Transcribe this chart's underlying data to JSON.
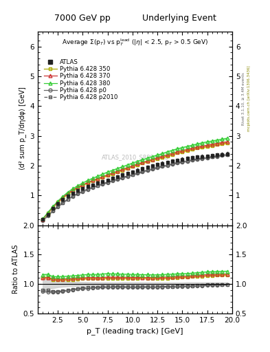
{
  "title_left": "7000 GeV pp",
  "title_right": "Underlying Event",
  "plot_title": "Average Σ(p_T) vs p_T^{lead} (|η| < 2.5, p_T > 0.5 GeV)",
  "xlabel": "p_T (leading track) [GeV]",
  "ylabel": "⟨d² sum p_T/dηdφ⟩ [GeV]",
  "ylabel_ratio": "Ratio to ATLAS",
  "watermark": "ATLAS_2010_S8894728",
  "right_label": "mcplots.cern.ch [arXiv:1306.3436]",
  "right_label2": "Rivet 3.1.10, ≥ 3.4M events",
  "xlim": [
    0.5,
    20
  ],
  "ylim_main": [
    0,
    6.5
  ],
  "ylim_ratio": [
    0.5,
    2.0
  ],
  "yticks_main": [
    1,
    2,
    3,
    4,
    5,
    6
  ],
  "yticks_ratio": [
    0.5,
    1.0,
    1.5,
    2.0
  ],
  "series": {
    "ATLAS": {
      "color": "#222222",
      "marker": "s",
      "filled": true,
      "linestyle": "none",
      "linewidth": 0.8,
      "markersize": 3.5,
      "zorder": 10,
      "label": "ATLAS",
      "x": [
        1.0,
        1.5,
        2.0,
        2.5,
        3.0,
        3.5,
        4.0,
        4.5,
        5.0,
        5.5,
        6.0,
        6.5,
        7.0,
        7.5,
        8.0,
        8.5,
        9.0,
        9.5,
        10.0,
        10.5,
        11.0,
        11.5,
        12.0,
        12.5,
        13.0,
        13.5,
        14.0,
        14.5,
        15.0,
        15.5,
        16.0,
        16.5,
        17.0,
        17.5,
        18.0,
        18.5,
        19.0,
        19.5
      ],
      "y": [
        0.19,
        0.37,
        0.56,
        0.72,
        0.86,
        0.98,
        1.08,
        1.16,
        1.23,
        1.3,
        1.36,
        1.42,
        1.47,
        1.52,
        1.58,
        1.63,
        1.69,
        1.74,
        1.8,
        1.85,
        1.9,
        1.95,
        2.0,
        2.04,
        2.08,
        2.12,
        2.16,
        2.19,
        2.22,
        2.25,
        2.27,
        2.29,
        2.31,
        2.32,
        2.34,
        2.36,
        2.38,
        2.4
      ],
      "yerr": [
        0.02,
        0.03,
        0.04,
        0.04,
        0.04,
        0.04,
        0.04,
        0.04,
        0.04,
        0.04,
        0.04,
        0.04,
        0.04,
        0.04,
        0.04,
        0.04,
        0.05,
        0.05,
        0.05,
        0.05,
        0.05,
        0.05,
        0.05,
        0.05,
        0.05,
        0.05,
        0.05,
        0.05,
        0.05,
        0.06,
        0.06,
        0.06,
        0.06,
        0.06,
        0.06,
        0.06,
        0.06,
        0.06
      ]
    },
    "P350": {
      "color": "#aaaa00",
      "marker": "s",
      "filled": false,
      "linestyle": "-",
      "linewidth": 0.8,
      "markersize": 3.0,
      "zorder": 6,
      "label": "Pythia 6.428 350",
      "x": [
        1.0,
        1.5,
        2.0,
        2.5,
        3.0,
        3.5,
        4.0,
        4.5,
        5.0,
        5.5,
        6.0,
        6.5,
        7.0,
        7.5,
        8.0,
        8.5,
        9.0,
        9.5,
        10.0,
        10.5,
        11.0,
        11.5,
        12.0,
        12.5,
        13.0,
        13.5,
        14.0,
        14.5,
        15.0,
        15.5,
        16.0,
        16.5,
        17.0,
        17.5,
        18.0,
        18.5,
        19.0,
        19.5
      ],
      "y": [
        0.21,
        0.41,
        0.6,
        0.77,
        0.92,
        1.05,
        1.16,
        1.26,
        1.34,
        1.42,
        1.49,
        1.55,
        1.61,
        1.67,
        1.73,
        1.79,
        1.85,
        1.91,
        1.97,
        2.03,
        2.09,
        2.14,
        2.19,
        2.24,
        2.28,
        2.33,
        2.38,
        2.43,
        2.47,
        2.51,
        2.55,
        2.59,
        2.62,
        2.65,
        2.68,
        2.71,
        2.74,
        2.77
      ],
      "yerr": [
        0.003,
        0.004,
        0.005,
        0.006,
        0.006,
        0.007,
        0.007,
        0.007,
        0.008,
        0.008,
        0.008,
        0.009,
        0.009,
        0.009,
        0.01,
        0.01,
        0.01,
        0.011,
        0.011,
        0.012,
        0.012,
        0.013,
        0.013,
        0.014,
        0.014,
        0.015,
        0.016,
        0.016,
        0.017,
        0.018,
        0.019,
        0.02,
        0.021,
        0.022,
        0.023,
        0.024,
        0.025,
        0.026
      ]
    },
    "P370": {
      "color": "#cc3333",
      "marker": "^",
      "filled": false,
      "linestyle": "-",
      "linewidth": 0.8,
      "markersize": 3.5,
      "zorder": 7,
      "label": "Pythia 6.428 370",
      "x": [
        1.0,
        1.5,
        2.0,
        2.5,
        3.0,
        3.5,
        4.0,
        4.5,
        5.0,
        5.5,
        6.0,
        6.5,
        7.0,
        7.5,
        8.0,
        8.5,
        9.0,
        9.5,
        10.0,
        10.5,
        11.0,
        11.5,
        12.0,
        12.5,
        13.0,
        13.5,
        14.0,
        14.5,
        15.0,
        15.5,
        16.0,
        16.5,
        17.0,
        17.5,
        18.0,
        18.5,
        19.0,
        19.5
      ],
      "y": [
        0.21,
        0.41,
        0.61,
        0.78,
        0.93,
        1.07,
        1.18,
        1.28,
        1.36,
        1.44,
        1.51,
        1.57,
        1.63,
        1.7,
        1.76,
        1.82,
        1.88,
        1.94,
        2.0,
        2.06,
        2.11,
        2.16,
        2.22,
        2.27,
        2.32,
        2.37,
        2.42,
        2.47,
        2.51,
        2.55,
        2.59,
        2.63,
        2.66,
        2.69,
        2.72,
        2.75,
        2.78,
        2.8
      ],
      "yerr": [
        0.003,
        0.004,
        0.005,
        0.006,
        0.006,
        0.007,
        0.007,
        0.007,
        0.008,
        0.008,
        0.008,
        0.009,
        0.009,
        0.009,
        0.01,
        0.01,
        0.01,
        0.011,
        0.011,
        0.012,
        0.012,
        0.013,
        0.013,
        0.014,
        0.014,
        0.015,
        0.016,
        0.016,
        0.017,
        0.018,
        0.019,
        0.02,
        0.021,
        0.022,
        0.023,
        0.024,
        0.025,
        0.026
      ]
    },
    "P380": {
      "color": "#33cc33",
      "marker": "^",
      "filled": false,
      "linestyle": "-",
      "linewidth": 0.8,
      "markersize": 3.5,
      "zorder": 8,
      "label": "Pythia 6.428 380",
      "x": [
        1.0,
        1.5,
        2.0,
        2.5,
        3.0,
        3.5,
        4.0,
        4.5,
        5.0,
        5.5,
        6.0,
        6.5,
        7.0,
        7.5,
        8.0,
        8.5,
        9.0,
        9.5,
        10.0,
        10.5,
        11.0,
        11.5,
        12.0,
        12.5,
        13.0,
        13.5,
        14.0,
        14.5,
        15.0,
        15.5,
        16.0,
        16.5,
        17.0,
        17.5,
        18.0,
        18.5,
        19.0,
        19.5
      ],
      "y": [
        0.22,
        0.43,
        0.63,
        0.81,
        0.97,
        1.11,
        1.23,
        1.33,
        1.42,
        1.51,
        1.58,
        1.65,
        1.72,
        1.79,
        1.85,
        1.91,
        1.97,
        2.03,
        2.09,
        2.15,
        2.2,
        2.26,
        2.31,
        2.36,
        2.41,
        2.47,
        2.52,
        2.57,
        2.61,
        2.65,
        2.69,
        2.73,
        2.77,
        2.8,
        2.83,
        2.86,
        2.89,
        2.92
      ],
      "yerr": [
        0.003,
        0.004,
        0.005,
        0.006,
        0.006,
        0.007,
        0.007,
        0.007,
        0.008,
        0.008,
        0.008,
        0.009,
        0.009,
        0.009,
        0.01,
        0.01,
        0.01,
        0.011,
        0.011,
        0.012,
        0.012,
        0.013,
        0.013,
        0.014,
        0.014,
        0.015,
        0.016,
        0.016,
        0.017,
        0.018,
        0.019,
        0.02,
        0.021,
        0.022,
        0.023,
        0.024,
        0.025,
        0.026
      ]
    },
    "Pp0": {
      "color": "#666666",
      "marker": "o",
      "filled": false,
      "linestyle": "-",
      "linewidth": 0.8,
      "markersize": 3.0,
      "zorder": 5,
      "label": "Pythia 6.428 p0",
      "x": [
        1.0,
        1.5,
        2.0,
        2.5,
        3.0,
        3.5,
        4.0,
        4.5,
        5.0,
        5.5,
        6.0,
        6.5,
        7.0,
        7.5,
        8.0,
        8.5,
        9.0,
        9.5,
        10.0,
        10.5,
        11.0,
        11.5,
        12.0,
        12.5,
        13.0,
        13.5,
        14.0,
        14.5,
        15.0,
        15.5,
        16.0,
        16.5,
        17.0,
        17.5,
        18.0,
        18.5,
        19.0,
        19.5
      ],
      "y": [
        0.165,
        0.32,
        0.48,
        0.62,
        0.75,
        0.87,
        0.97,
        1.06,
        1.13,
        1.2,
        1.27,
        1.33,
        1.38,
        1.43,
        1.49,
        1.54,
        1.59,
        1.64,
        1.69,
        1.74,
        1.79,
        1.84,
        1.88,
        1.93,
        1.97,
        2.01,
        2.05,
        2.09,
        2.12,
        2.15,
        2.18,
        2.21,
        2.24,
        2.26,
        2.29,
        2.31,
        2.34,
        2.36
      ],
      "yerr": [
        0.002,
        0.003,
        0.004,
        0.004,
        0.005,
        0.005,
        0.005,
        0.006,
        0.006,
        0.006,
        0.006,
        0.007,
        0.007,
        0.007,
        0.007,
        0.008,
        0.008,
        0.008,
        0.008,
        0.009,
        0.009,
        0.009,
        0.009,
        0.01,
        0.01,
        0.01,
        0.011,
        0.011,
        0.011,
        0.012,
        0.012,
        0.013,
        0.013,
        0.013,
        0.014,
        0.014,
        0.015,
        0.015
      ]
    },
    "Pp2010": {
      "color": "#555555",
      "marker": "s",
      "filled": false,
      "linestyle": "--",
      "linewidth": 0.8,
      "markersize": 3.0,
      "zorder": 5,
      "label": "Pythia 6.428 p2010",
      "x": [
        1.0,
        1.5,
        2.0,
        2.5,
        3.0,
        3.5,
        4.0,
        4.5,
        5.0,
        5.5,
        6.0,
        6.5,
        7.0,
        7.5,
        8.0,
        8.5,
        9.0,
        9.5,
        10.0,
        10.5,
        11.0,
        11.5,
        12.0,
        12.5,
        13.0,
        13.5,
        14.0,
        14.5,
        15.0,
        15.5,
        16.0,
        16.5,
        17.0,
        17.5,
        18.0,
        18.5,
        19.0,
        19.5
      ],
      "y": [
        0.17,
        0.33,
        0.49,
        0.63,
        0.76,
        0.88,
        0.98,
        1.07,
        1.15,
        1.22,
        1.28,
        1.34,
        1.4,
        1.45,
        1.51,
        1.56,
        1.61,
        1.66,
        1.71,
        1.76,
        1.81,
        1.86,
        1.9,
        1.95,
        1.99,
        2.03,
        2.07,
        2.11,
        2.14,
        2.17,
        2.2,
        2.23,
        2.26,
        2.28,
        2.31,
        2.33,
        2.36,
        2.38
      ],
      "yerr": [
        0.002,
        0.003,
        0.004,
        0.004,
        0.005,
        0.005,
        0.005,
        0.006,
        0.006,
        0.006,
        0.006,
        0.007,
        0.007,
        0.007,
        0.007,
        0.008,
        0.008,
        0.008,
        0.008,
        0.009,
        0.009,
        0.009,
        0.009,
        0.01,
        0.01,
        0.01,
        0.011,
        0.011,
        0.011,
        0.012,
        0.012,
        0.013,
        0.013,
        0.013,
        0.014,
        0.014,
        0.015,
        0.015
      ]
    }
  },
  "band_colors": {
    "P350": "#dddd00",
    "P370": "#ff8888",
    "P380": "#88ee88",
    "Pp0": "#aaaaaa",
    "Pp2010": "#aaaaaa"
  }
}
